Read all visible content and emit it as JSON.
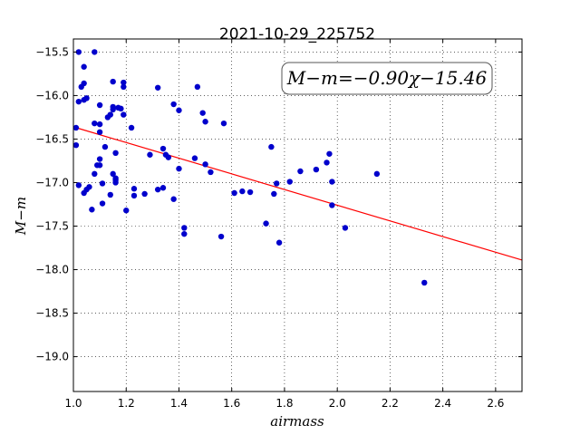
{
  "chart_data": {
    "type": "scatter",
    "title": "2021-10-29_225752",
    "xlabel": "airmass",
    "ylabel": "M−m",
    "xlim": [
      1.0,
      2.7
    ],
    "ylim": [
      -19.4,
      -15.35
    ],
    "y_inverted": true,
    "grid": true,
    "xticks": [
      1.0,
      1.2,
      1.4,
      1.6,
      1.8,
      2.0,
      2.2,
      2.4,
      2.6
    ],
    "xtick_labels": [
      "1.0",
      "1.2",
      "1.4",
      "1.6",
      "1.8",
      "2.0",
      "2.2",
      "2.4",
      "2.6"
    ],
    "yticks": [
      -15.5,
      -16.0,
      -16.5,
      -17.0,
      -17.5,
      -18.0,
      -18.5,
      -19.0
    ],
    "ytick_labels": [
      "−15.5",
      "−16.0",
      "−16.5",
      "−17.0",
      "−17.5",
      "−18.0",
      "−18.5",
      "−19.0"
    ],
    "annotation": "M−m=−0.90χ−15.46",
    "fit": {
      "slope": -0.9,
      "intercept": -15.46,
      "x_range": [
        1.0,
        2.7
      ],
      "color": "#ff0000"
    },
    "point_color": "#0000cc",
    "points": [
      [
        1.02,
        -15.5
      ],
      [
        1.08,
        -15.5
      ],
      [
        1.04,
        -15.67
      ],
      [
        1.03,
        -15.9
      ],
      [
        1.04,
        -15.86
      ],
      [
        1.02,
        -16.07
      ],
      [
        1.04,
        -16.05
      ],
      [
        1.05,
        -16.03
      ],
      [
        1.01,
        -16.37
      ],
      [
        1.01,
        -16.57
      ],
      [
        1.08,
        -16.32
      ],
      [
        1.1,
        -16.33
      ],
      [
        1.1,
        -16.11
      ],
      [
        1.1,
        -16.42
      ],
      [
        1.12,
        -16.59
      ],
      [
        1.1,
        -16.73
      ],
      [
        1.09,
        -16.8
      ],
      [
        1.1,
        -16.8
      ],
      [
        1.08,
        -16.9
      ],
      [
        1.02,
        -17.03
      ],
      [
        1.04,
        -17.12
      ],
      [
        1.05,
        -17.08
      ],
      [
        1.06,
        -17.05
      ],
      [
        1.07,
        -17.31
      ],
      [
        1.11,
        -17.01
      ],
      [
        1.11,
        -17.24
      ],
      [
        1.13,
        -16.25
      ],
      [
        1.14,
        -16.22
      ],
      [
        1.15,
        -16.13
      ],
      [
        1.15,
        -16.16
      ],
      [
        1.15,
        -15.84
      ],
      [
        1.17,
        -16.14
      ],
      [
        1.18,
        -16.15
      ],
      [
        1.19,
        -15.85
      ],
      [
        1.19,
        -15.9
      ],
      [
        1.19,
        -16.22
      ],
      [
        1.16,
        -16.66
      ],
      [
        1.15,
        -16.9
      ],
      [
        1.16,
        -16.95
      ],
      [
        1.16,
        -16.97
      ],
      [
        1.16,
        -17.0
      ],
      [
        1.14,
        -17.14
      ],
      [
        1.2,
        -17.32
      ],
      [
        1.22,
        -16.37
      ],
      [
        1.23,
        -17.07
      ],
      [
        1.23,
        -17.15
      ],
      [
        1.27,
        -17.13
      ],
      [
        1.29,
        -16.68
      ],
      [
        1.32,
        -15.91
      ],
      [
        1.32,
        -17.08
      ],
      [
        1.34,
        -17.06
      ],
      [
        1.34,
        -16.61
      ],
      [
        1.35,
        -16.68
      ],
      [
        1.36,
        -16.71
      ],
      [
        1.38,
        -16.1
      ],
      [
        1.38,
        -17.19
      ],
      [
        1.4,
        -16.17
      ],
      [
        1.4,
        -16.84
      ],
      [
        1.42,
        -17.52
      ],
      [
        1.42,
        -17.59
      ],
      [
        1.46,
        -16.72
      ],
      [
        1.47,
        -15.9
      ],
      [
        1.49,
        -16.2
      ],
      [
        1.5,
        -16.3
      ],
      [
        1.5,
        -16.79
      ],
      [
        1.52,
        -16.88
      ],
      [
        1.56,
        -17.62
      ],
      [
        1.57,
        -16.32
      ],
      [
        1.61,
        -17.12
      ],
      [
        1.64,
        -17.1
      ],
      [
        1.67,
        -17.11
      ],
      [
        1.73,
        -17.47
      ],
      [
        1.75,
        -16.59
      ],
      [
        1.76,
        -17.13
      ],
      [
        1.77,
        -17.01
      ],
      [
        1.78,
        -17.69
      ],
      [
        1.82,
        -16.99
      ],
      [
        1.86,
        -16.87
      ],
      [
        1.92,
        -16.85
      ],
      [
        1.96,
        -16.77
      ],
      [
        1.97,
        -16.67
      ],
      [
        1.98,
        -16.99
      ],
      [
        1.98,
        -17.26
      ],
      [
        2.03,
        -17.52
      ],
      [
        2.15,
        -16.9
      ],
      [
        2.33,
        -18.15
      ]
    ]
  }
}
